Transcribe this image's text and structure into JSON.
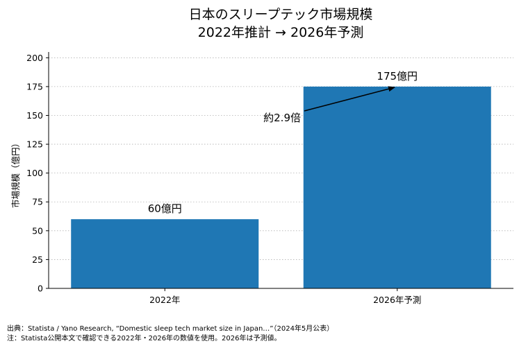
{
  "chart_data": {
    "type": "bar",
    "title_line1": "日本のスリープテック市場規模",
    "title_line2": "2022年推計 → 2026年予測",
    "categories": [
      "2022年",
      "2026年予測"
    ],
    "values": [
      60,
      175
    ],
    "value_labels": [
      "60億円",
      "175億円"
    ],
    "ylabel": "市場規模（億円）",
    "ylim": [
      0,
      205
    ],
    "yticks": [
      0,
      25,
      50,
      75,
      100,
      125,
      150,
      175,
      200
    ],
    "grid": "horizontal dotted",
    "bar_color": "#1f77b4",
    "annotation": {
      "text": "約2.9倍"
    }
  },
  "footer": {
    "source": "出典：Statista / Yano Research, “Domestic sleep tech market size in Japan…”（2024年5月公表）",
    "note": "注：Statista公開本文で確認できる2022年・2026年の数値を使用。2026年は予測値。"
  }
}
